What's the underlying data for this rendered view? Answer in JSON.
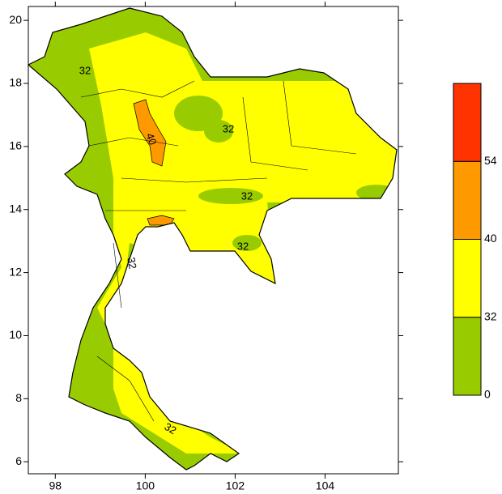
{
  "map": {
    "xlim": [
      97.4,
      105.63
    ],
    "ylim": [
      5.62,
      20.44
    ],
    "xticks": [
      98,
      100,
      102,
      104
    ],
    "yticks": [
      6,
      8,
      10,
      12,
      14,
      16,
      18,
      20
    ],
    "contour_labels": [
      32,
      40,
      32,
      32,
      32,
      32,
      32
    ],
    "colorbar": {
      "labels": [
        0,
        32,
        40,
        54
      ],
      "colors": [
        "#99cc00",
        "#ffff00",
        "#ff9900",
        "#ff3300"
      ]
    }
  }
}
